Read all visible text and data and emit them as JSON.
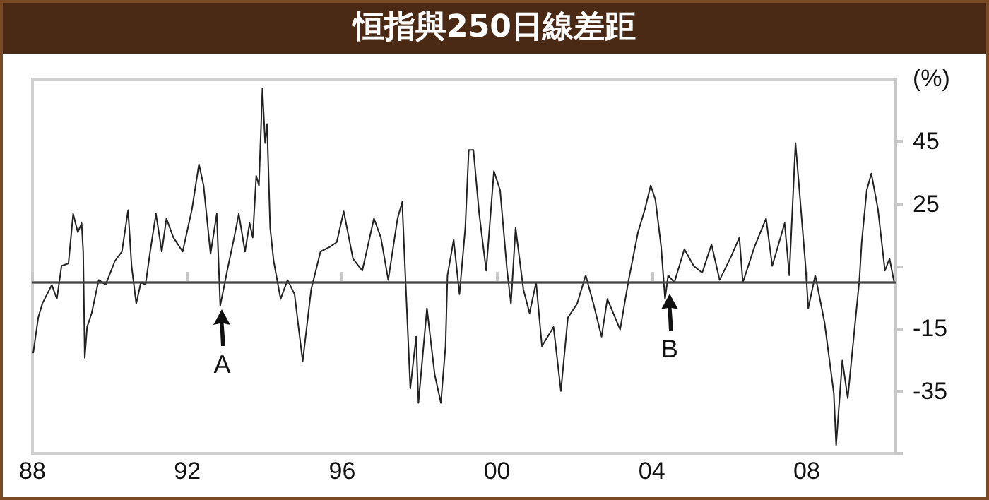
{
  "chart_data": {
    "type": "line",
    "title": "恒指與250日線差距",
    "ylabel": "(%)",
    "x": [
      1988.02,
      1988.15,
      1988.26,
      1988.5,
      1988.63,
      1988.75,
      1988.93,
      1989.05,
      1989.17,
      1989.27,
      1989.31,
      1989.35,
      1989.41,
      1989.53,
      1989.71,
      1989.89,
      1990.13,
      1990.31,
      1990.47,
      1990.56,
      1990.68,
      1990.8,
      1990.92,
      1991.04,
      1991.19,
      1991.34,
      1991.46,
      1991.64,
      1991.88,
      1992.12,
      1992.3,
      1992.42,
      1992.6,
      1992.76,
      1992.85,
      1993.03,
      1993.21,
      1993.33,
      1993.49,
      1993.61,
      1993.69,
      1993.78,
      1993.85,
      1993.94,
      1994.01,
      1994.06,
      1994.14,
      1994.23,
      1994.41,
      1994.59,
      1994.77,
      1994.98,
      1995.2,
      1995.44,
      1995.68,
      1995.86,
      1996.04,
      1996.28,
      1996.52,
      1996.82,
      1997.0,
      1997.19,
      1997.43,
      1997.55,
      1997.61,
      1997.76,
      1997.91,
      1997.97,
      1998.19,
      1998.39,
      1998.55,
      1998.67,
      1998.72,
      1998.88,
      1999.03,
      1999.18,
      1999.27,
      1999.39,
      1999.54,
      1999.72,
      1999.92,
      2000.08,
      2000.26,
      2000.36,
      2000.48,
      2000.68,
      2000.84,
      2001.01,
      2001.16,
      2001.46,
      2001.65,
      2001.83,
      2002.07,
      2002.29,
      2002.49,
      2002.7,
      2002.85,
      2003.18,
      2003.4,
      2003.64,
      2003.82,
      2003.97,
      2004.09,
      2004.24,
      2004.34,
      2004.42,
      2004.58,
      2004.84,
      2005.08,
      2005.3,
      2005.54,
      2005.75,
      2006.05,
      2006.26,
      2006.35,
      2006.65,
      2006.95,
      2007.11,
      2007.43,
      2007.55,
      2007.71,
      2007.79,
      2007.97,
      2008.04,
      2008.22,
      2008.46,
      2008.7,
      2008.76,
      2008.92,
      2009.06,
      2009.24,
      2009.36,
      2009.42,
      2009.55,
      2009.67,
      2009.84,
      2010.02,
      2010.14,
      2010.26
    ],
    "series": [
      {
        "color": "#222222",
        "values": [
          -22.7,
          -11.4,
          -6.8,
          -1,
          -5.5,
          5.1,
          5.9,
          21.8,
          15.9,
          18.8,
          9.7,
          -24.4,
          -14.5,
          -10,
          0.6,
          -0.9,
          6.7,
          9.7,
          23,
          5.1,
          -7,
          -0.2,
          -0.9,
          9.7,
          21.8,
          9.7,
          20.3,
          14.2,
          9.7,
          23.3,
          37.7,
          30.9,
          9,
          21.8,
          -7.7,
          3.6,
          14.2,
          21.8,
          9.7,
          18.8,
          14.2,
          34,
          30.9,
          62,
          44.5,
          50.6,
          17.3,
          6.7,
          -5.5,
          0.6,
          -4,
          -25.5,
          -2.4,
          9.7,
          11.2,
          12.7,
          22.6,
          7.4,
          3.6,
          20.3,
          14.2,
          0.6,
          20.3,
          25.6,
          8.2,
          -34.2,
          -17.6,
          -38.8,
          -8.5,
          -29.7,
          -38.8,
          -20.6,
          2.1,
          13.5,
          -4,
          17.3,
          42.3,
          42.3,
          21.8,
          3.6,
          35.5,
          29.4,
          3.6,
          -7,
          17.3,
          -2.4,
          -10,
          -0.2,
          -20.6,
          -14.5,
          -35,
          -11.5,
          -7,
          2.1,
          -7,
          -17.6,
          -5.5,
          -15.3,
          0.6,
          15.8,
          23.3,
          30.9,
          26.4,
          11.2,
          -5.5,
          2.1,
          -0.2,
          10.5,
          5.1,
          2.9,
          12,
          0.6,
          8.2,
          14.2,
          -0.2,
          11.2,
          20.3,
          5.1,
          18.8,
          2.1,
          44.5,
          32.4,
          5.1,
          -8.5,
          2.1,
          -13,
          -35.8,
          -52.3,
          -25.2,
          -37.3,
          -14.5,
          0.6,
          12.7,
          29.4,
          34.7,
          23.3,
          3.6,
          7.4,
          -0.2
        ]
      }
    ],
    "xlim": [
      1988,
      2010.3
    ],
    "xticks": [
      {
        "value": 1988,
        "label": "88"
      },
      {
        "value": 1992,
        "label": "92"
      },
      {
        "value": 1996,
        "label": "96"
      },
      {
        "value": 2000,
        "label": "00"
      },
      {
        "value": 2004,
        "label": "04"
      },
      {
        "value": 2008,
        "label": "08"
      }
    ],
    "ylim": [
      -55,
      65
    ],
    "yticks": [
      {
        "value": -55,
        "label": null
      },
      -35,
      -15,
      {
        "value": 5,
        "label": null
      },
      25,
      45
    ],
    "ref_lines": [
      {
        "axis": "y",
        "value": 0,
        "color": "#444444"
      }
    ],
    "annotations": [
      {
        "text": "A",
        "x": 1992.9,
        "y": -9
      },
      {
        "text": "B",
        "x": 2004.46,
        "y": -4
      }
    ],
    "grid": false,
    "marker": "none",
    "line_style": "solid"
  }
}
